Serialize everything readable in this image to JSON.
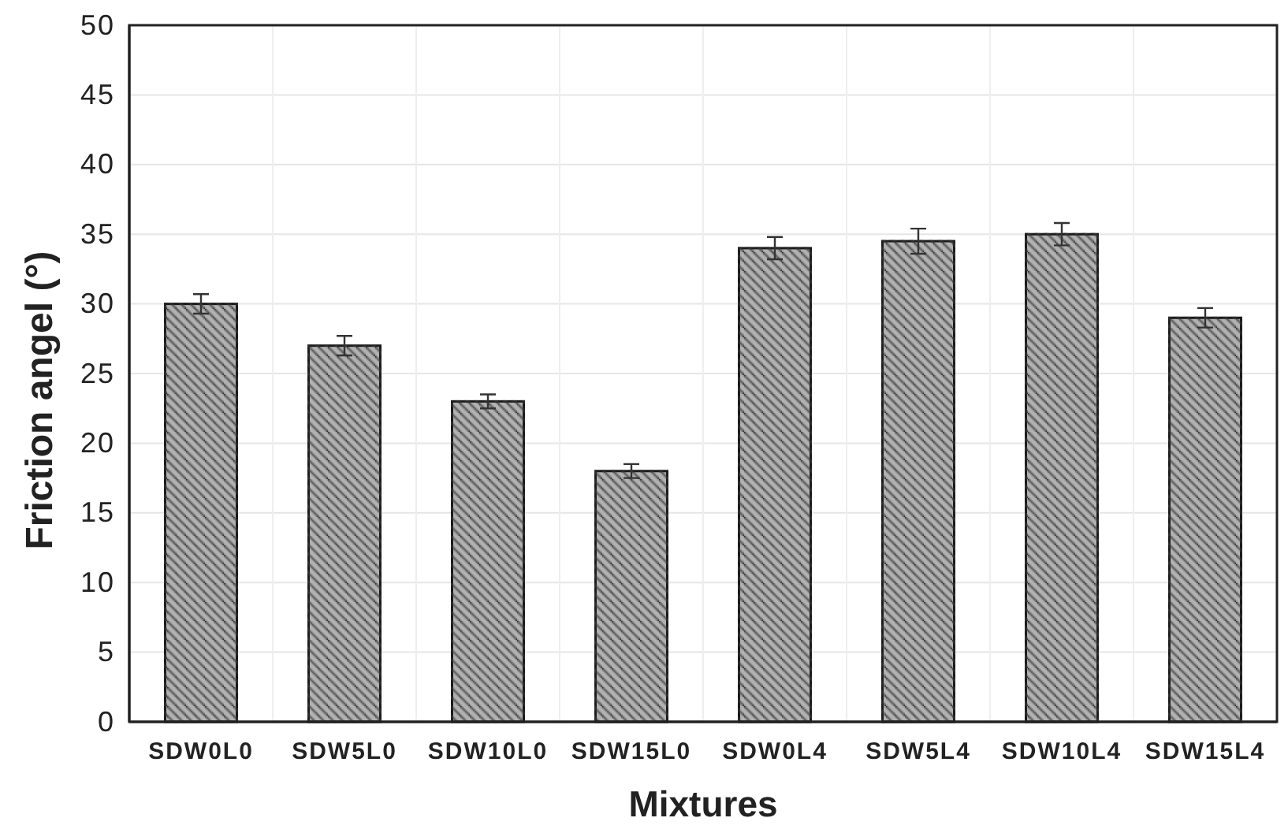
{
  "chart_data": {
    "type": "bar",
    "xlabel": "Mixtures",
    "ylabel": "Friction angel (°)",
    "categories": [
      "SDW0L0",
      "SDW5L0",
      "SDW10L0",
      "SDW15L0",
      "SDW0L4",
      "SDW5L4",
      "SDW10L4",
      "SDW15L4"
    ],
    "values": [
      30,
      27,
      23,
      18,
      34,
      34.5,
      35,
      29
    ],
    "errors": [
      0.7,
      0.7,
      0.5,
      0.5,
      0.8,
      0.9,
      0.8,
      0.7
    ],
    "color": "#b3b3b3",
    "ylim": [
      0,
      50
    ],
    "yticks": [
      0,
      5,
      10,
      15,
      20,
      25,
      30,
      35,
      40,
      45,
      50
    ],
    "grid": true
  }
}
